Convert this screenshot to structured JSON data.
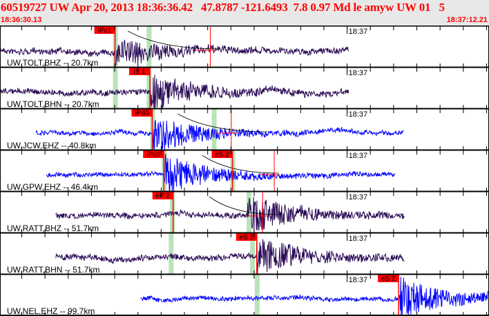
{
  "header": {
    "title": "60519727 UW Apr 20, 2013 18:36:36.42   47.8787 -121.6493  7.8 0.97 Md le amyw UW 01   5",
    "start_time": "18:36:30.13",
    "end_time": "18:37:12.21"
  },
  "time_axis": {
    "duration_s": 42.08,
    "tick_interval_s": 2,
    "minute_label": "18:37",
    "minute_offset_s": 29.87
  },
  "colors": {
    "pick": "#ff0000",
    "band": "#b9e3b9",
    "bb_trace": "#2a0a55",
    "sp_trace": "#0000ff",
    "text": "#000000"
  },
  "channels": [
    {
      "label": "UW,TOLT,BHZ -- 20.7km",
      "kind": "bb",
      "start_s": 0,
      "end_s": 30,
      "onset_s": 9.9,
      "amp": 0.35,
      "picks": [
        {
          "label": "iPc1",
          "t": 9.9
        }
      ],
      "bands": [
        9.9,
        12.8
      ],
      "extra_lines": [
        18.1
      ],
      "curve": [
        11,
        19
      ]
    },
    {
      "label": "UW,TOLT,BHN -- 20.7km",
      "kind": "bb",
      "start_s": 0,
      "end_s": 30,
      "onset_s": 12.9,
      "amp": 0.45,
      "picks": [
        {
          "label": "iS 1",
          "t": 12.9
        }
      ],
      "bands": [
        9.9,
        12.8
      ],
      "extra_lines": [],
      "curve": null
    },
    {
      "label": "UW,JCW,EHZ -- 40.8km",
      "kind": "sp",
      "start_s": 3.1,
      "end_s": 34.8,
      "onset_s": 13.1,
      "amp": 0.45,
      "picks": [
        {
          "label": "iPd0",
          "t": 13.1
        }
      ],
      "bands": [
        13.1,
        18.4
      ],
      "extra_lines": [
        19.9
      ],
      "curve": [
        15.3,
        23
      ]
    },
    {
      "label": "UW,GPW,EHZ -- 46.4km",
      "kind": "sp",
      "start_s": 4,
      "end_s": 34,
      "onset_s": 14.1,
      "amp": 0.5,
      "picks": [
        {
          "label": "iPc0",
          "t": 14.1
        },
        {
          "label": "eS 2",
          "t": 20.0
        }
      ],
      "bands": [
        14.1,
        20.0
      ],
      "extra_lines": [
        23.6
      ],
      "curve": [
        17.4,
        24
      ]
    },
    {
      "label": "UW,RATT,BHZ -- 51.7km",
      "kind": "bb",
      "start_s": 4.8,
      "end_s": 34.8,
      "onset_s": 21.3,
      "amp": 0.45,
      "picks": [
        {
          "label": "eP 2",
          "t": 14.9
        }
      ],
      "bands": [
        14.8,
        21.4
      ],
      "extra_lines": [
        22.6
      ],
      "curve": [
        18,
        24
      ]
    },
    {
      "label": "UW,RATT,BHN -- 51.7km",
      "kind": "bb",
      "start_s": 4.8,
      "end_s": 34.8,
      "onset_s": 22.1,
      "amp": 0.45,
      "picks": [
        {
          "label": "eS 2",
          "t": 22.1
        }
      ],
      "bands": [
        14.7,
        21.7
      ],
      "extra_lines": [],
      "curve": null
    },
    {
      "label": "UW,NEL,EHZ -- 99.7km",
      "kind": "sp",
      "start_s": 12.1,
      "end_s": 42.08,
      "onset_s": 34.4,
      "amp": 0.5,
      "picks": [
        {
          "label": "eS 2",
          "t": 34.3
        }
      ],
      "bands": [
        22.1
      ],
      "extra_lines": [],
      "curve": null
    }
  ]
}
